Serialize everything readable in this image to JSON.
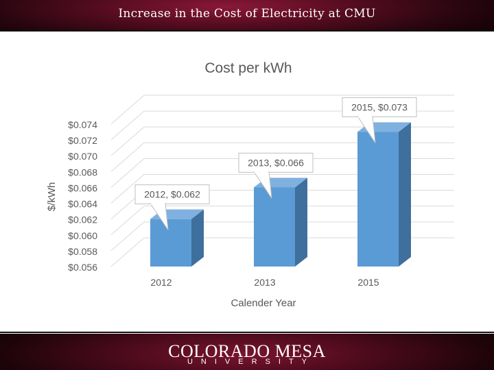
{
  "header": {
    "title": "Increase in the Cost of Electricity at CMU"
  },
  "chart_data": {
    "type": "bar",
    "title": "Cost per kWh",
    "xlabel": "Calender Year",
    "ylabel": "$/kWh",
    "categories": [
      "2012",
      "2013",
      "2015"
    ],
    "values": [
      0.062,
      0.066,
      0.073
    ],
    "ylim": [
      0.056,
      0.074
    ],
    "yticks": [
      "$0.074",
      "$0.072",
      "$0.070",
      "$0.068",
      "$0.066",
      "$0.064",
      "$0.062",
      "$0.060",
      "$0.058",
      "$0.056"
    ],
    "data_labels": [
      "2012, $0.062",
      "2013, $0.066",
      "2015, $0.073"
    ],
    "bar_color": "#5b9bd5",
    "grid": true
  },
  "footer": {
    "name": "Colorado Mesa",
    "subtitle": "UNIVERSITY"
  },
  "colors": {
    "maroon": "#5a0d22",
    "bar_front": "#5b9bd5",
    "bar_side": "#3f6f9c",
    "bar_top": "#7fb0e0"
  }
}
